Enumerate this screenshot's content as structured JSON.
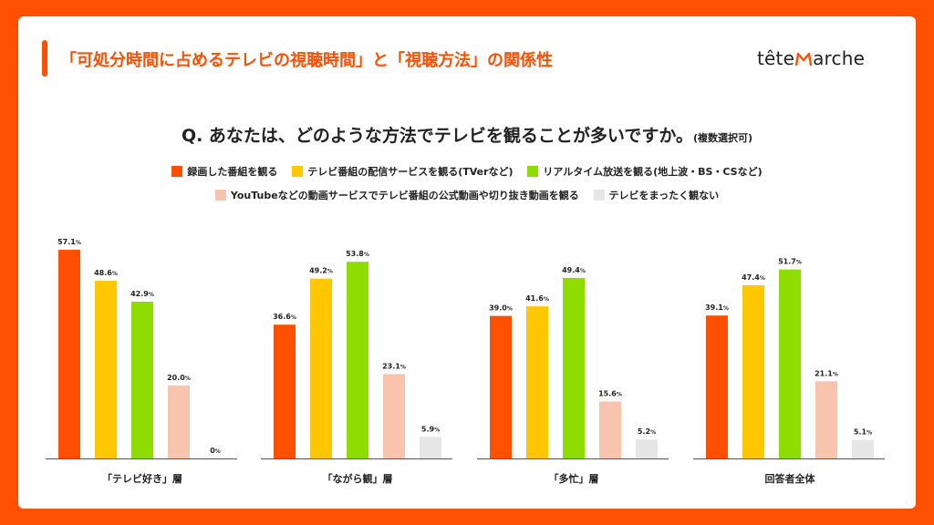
{
  "header": {
    "title": "「可処分時間に占めるテレビの視聴時間」と「視聴方法」の関係性",
    "brand_left": "tête",
    "brand_right": "arche"
  },
  "question": {
    "text": "Q. あなたは、どのような方法でテレビを観ることが多いですか。",
    "note": "(複数選択可)"
  },
  "colors": {
    "accent": "#ff4f00",
    "series": [
      "#ff4f00",
      "#ffc700",
      "#8fdc00",
      "#f9c4ad",
      "#e6e6e6"
    ]
  },
  "chart_data": {
    "type": "bar",
    "title": "Q. あなたは、どのような方法でテレビを観ることが多いですか。(複数選択可)",
    "categories": [
      "「テレビ好き」層",
      "「ながら観」層",
      "「多忙」層",
      "回答者全体"
    ],
    "ylim": [
      0,
      60
    ],
    "unit": "%",
    "series": [
      {
        "name": "録画した番組を観る",
        "color": "#ff4f00",
        "values": [
          57.1,
          36.6,
          39.0,
          39.1
        ],
        "labels": [
          "57.1",
          "36.6",
          "39.0",
          "39.1"
        ]
      },
      {
        "name": "テレビ番組の配信サービスを観る(TVerなど)",
        "color": "#ffc700",
        "values": [
          48.6,
          49.2,
          41.6,
          47.4
        ],
        "labels": [
          "48.6",
          "49.2",
          "41.6",
          "47.4"
        ]
      },
      {
        "name": "リアルタイム放送を観る(地上波・BS・CSなど)",
        "color": "#8fdc00",
        "values": [
          42.9,
          53.8,
          49.4,
          51.7
        ],
        "labels": [
          "42.9",
          "53.8",
          "49.4",
          "51.7"
        ]
      },
      {
        "name": "YouTubeなどの動画サービスでテレビ番組の公式動画や切り抜き動画を観る",
        "color": "#f9c4ad",
        "values": [
          20.0,
          23.1,
          15.6,
          21.1
        ],
        "labels": [
          "20.0",
          "23.1",
          "15.6",
          "21.1"
        ]
      },
      {
        "name": "テレビをまったく観ない",
        "color": "#e6e6e6",
        "values": [
          0,
          5.9,
          5.2,
          5.1
        ],
        "labels": [
          "0",
          "5.9",
          "5.2",
          "5.1"
        ]
      }
    ]
  }
}
